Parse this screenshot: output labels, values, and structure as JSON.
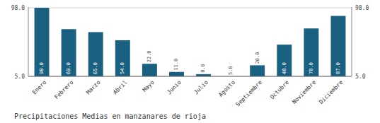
{
  "chart_data": {
    "type": "bar",
    "title": "Precipitaciones Medias en manzanares de rioja",
    "categories": [
      "Enero",
      "Febrero",
      "Marzo",
      "Abril",
      "Mayo",
      "Junio",
      "Julio",
      "Agosto",
      "Septiembre",
      "Octubre",
      "Noviembre",
      "Diciembre"
    ],
    "values": [
      98,
      69,
      65,
      54,
      22,
      11,
      8,
      5,
      20,
      48,
      70,
      87
    ],
    "value_labels": [
      "98.0",
      "69.0",
      "65.0",
      "54.0",
      "22.0",
      "11.0",
      "8.0",
      "5.0",
      "20.0",
      "48.0",
      "70.0",
      "87.0"
    ],
    "data_labels": true,
    "color": "#1a6080",
    "ylim": [
      5,
      99
    ],
    "yticks": [
      {
        "value": 5,
        "label": "5.0"
      },
      {
        "value": 98,
        "label": "98.0"
      }
    ],
    "grid": true
  }
}
